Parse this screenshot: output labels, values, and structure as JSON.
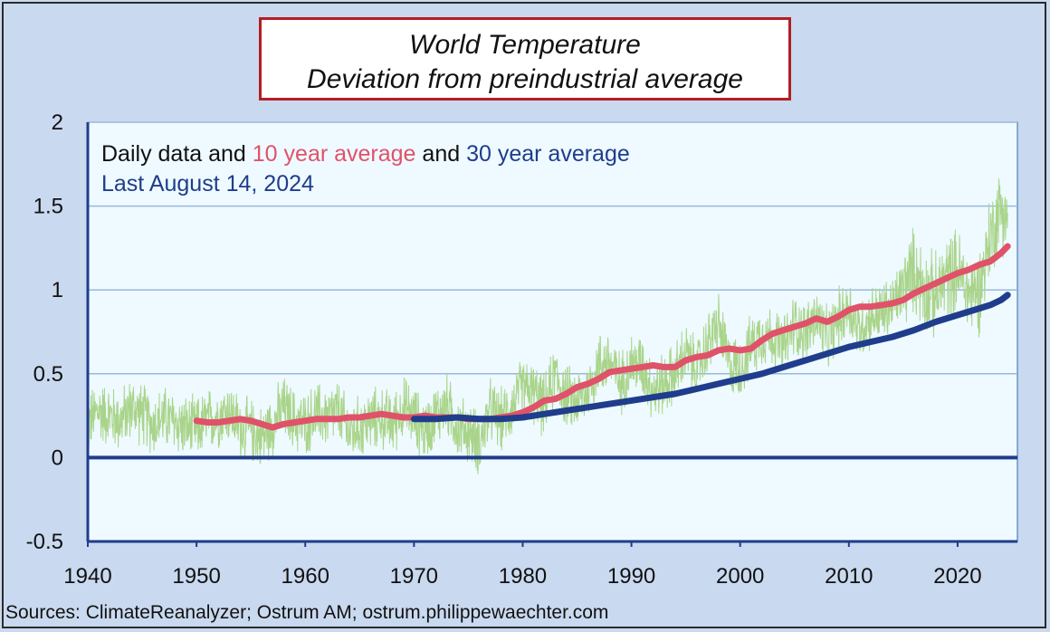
{
  "title_line1": "World Temperature",
  "title_line2": "Deviation from preindustrial average",
  "footer": "Sources: ClimateReanalyzer;  Ostrum AM; ostrum.philippewaechter.com",
  "chart_data": {
    "type": "line",
    "xlim": [
      1940,
      2025.5
    ],
    "ylim": [
      -0.5,
      2
    ],
    "xticks": [
      1940,
      1950,
      1960,
      1970,
      1980,
      1990,
      2000,
      2010,
      2020
    ],
    "yticks": [
      -0.5,
      0,
      0.5,
      1,
      1.5,
      2
    ],
    "ytick_labels": [
      "-0.5",
      "0",
      "0.5",
      "1",
      "1.5",
      "2"
    ],
    "grid": "horizontal",
    "legend": {
      "line1": [
        {
          "text": "Daily data and ",
          "color": "#111111"
        },
        {
          "text": "10 year average",
          "color": "#e0526a"
        },
        {
          "text": " and ",
          "color": "#111111"
        },
        {
          "text": "30 year average",
          "color": "#1f3d8c"
        }
      ],
      "line2": {
        "text": "Last August 14, 2024",
        "color": "#1f3d8c"
      }
    },
    "colors": {
      "daily": "#a9d48a",
      "avg10": "#e0526a",
      "avg30": "#1f3d8c",
      "zero_line": "#1f3d8c",
      "plot_bg": "#eefaff",
      "grid": "#9ab8dc"
    },
    "series": [
      {
        "key": "daily",
        "x": [
          1940,
          1941,
          1942,
          1943,
          1944,
          1945,
          1946,
          1947,
          1948,
          1949,
          1950,
          1951,
          1952,
          1953,
          1954,
          1955,
          1956,
          1957,
          1958,
          1959,
          1960,
          1961,
          1962,
          1963,
          1964,
          1965,
          1966,
          1967,
          1968,
          1969,
          1970,
          1971,
          1972,
          1973,
          1974,
          1975,
          1976,
          1977,
          1978,
          1979,
          1980,
          1981,
          1982,
          1983,
          1984,
          1985,
          1986,
          1987,
          1988,
          1989,
          1990,
          1991,
          1992,
          1993,
          1994,
          1995,
          1996,
          1997,
          1998,
          1999,
          2000,
          2001,
          2002,
          2003,
          2004,
          2005,
          2006,
          2007,
          2008,
          2009,
          2010,
          2011,
          2012,
          2013,
          2014,
          2015,
          2016,
          2017,
          2018,
          2019,
          2020,
          2021,
          2022,
          2023,
          2024,
          2024.6
        ],
        "y": [
          0.2,
          0.28,
          0.25,
          0.22,
          0.3,
          0.26,
          0.2,
          0.24,
          0.21,
          0.18,
          0.17,
          0.22,
          0.25,
          0.28,
          0.18,
          0.16,
          0.12,
          0.2,
          0.3,
          0.22,
          0.2,
          0.26,
          0.24,
          0.28,
          0.15,
          0.18,
          0.22,
          0.24,
          0.2,
          0.3,
          0.24,
          0.16,
          0.25,
          0.32,
          0.18,
          0.16,
          0.08,
          0.28,
          0.22,
          0.3,
          0.42,
          0.38,
          0.3,
          0.5,
          0.36,
          0.34,
          0.4,
          0.56,
          0.58,
          0.44,
          0.56,
          0.55,
          0.4,
          0.44,
          0.5,
          0.62,
          0.52,
          0.68,
          0.8,
          0.55,
          0.54,
          0.66,
          0.74,
          0.72,
          0.66,
          0.8,
          0.74,
          0.84,
          0.7,
          0.82,
          0.9,
          0.76,
          0.84,
          0.86,
          0.9,
          1.02,
          1.12,
          1.0,
          0.96,
          1.08,
          1.12,
          0.98,
          1.0,
          1.32,
          1.5,
          1.42
        ]
      },
      {
        "key": "avg10",
        "name": "10 year average",
        "x": [
          1950,
          1951,
          1952,
          1953,
          1954,
          1955,
          1956,
          1957,
          1958,
          1959,
          1960,
          1961,
          1962,
          1963,
          1964,
          1965,
          1966,
          1967,
          1968,
          1969,
          1970,
          1971,
          1972,
          1973,
          1974,
          1975,
          1976,
          1977,
          1978,
          1979,
          1980,
          1981,
          1982,
          1983,
          1984,
          1985,
          1986,
          1987,
          1988,
          1989,
          1990,
          1991,
          1992,
          1993,
          1994,
          1995,
          1996,
          1997,
          1998,
          1999,
          2000,
          2001,
          2002,
          2003,
          2004,
          2005,
          2006,
          2007,
          2008,
          2009,
          2010,
          2011,
          2012,
          2013,
          2014,
          2015,
          2016,
          2017,
          2018,
          2019,
          2020,
          2021,
          2022,
          2023,
          2024,
          2024.6
        ],
        "y": [
          0.22,
          0.21,
          0.21,
          0.22,
          0.23,
          0.22,
          0.2,
          0.18,
          0.2,
          0.21,
          0.22,
          0.23,
          0.23,
          0.23,
          0.24,
          0.24,
          0.25,
          0.26,
          0.25,
          0.24,
          0.24,
          0.25,
          0.24,
          0.24,
          0.24,
          0.23,
          0.23,
          0.23,
          0.24,
          0.25,
          0.27,
          0.3,
          0.34,
          0.35,
          0.38,
          0.42,
          0.44,
          0.47,
          0.51,
          0.52,
          0.53,
          0.54,
          0.55,
          0.54,
          0.54,
          0.58,
          0.6,
          0.61,
          0.64,
          0.65,
          0.64,
          0.65,
          0.7,
          0.74,
          0.76,
          0.78,
          0.8,
          0.83,
          0.81,
          0.84,
          0.88,
          0.9,
          0.9,
          0.91,
          0.92,
          0.94,
          0.98,
          1.01,
          1.04,
          1.07,
          1.1,
          1.12,
          1.15,
          1.17,
          1.22,
          1.26
        ]
      },
      {
        "key": "avg30",
        "name": "30 year average",
        "x": [
          1970,
          1972,
          1974,
          1976,
          1978,
          1980,
          1982,
          1984,
          1986,
          1988,
          1990,
          1992,
          1994,
          1996,
          1998,
          2000,
          2002,
          2004,
          2006,
          2008,
          2010,
          2012,
          2014,
          2016,
          2018,
          2020,
          2022,
          2023,
          2024,
          2024.6
        ],
        "y": [
          0.23,
          0.23,
          0.24,
          0.23,
          0.23,
          0.24,
          0.26,
          0.28,
          0.3,
          0.32,
          0.34,
          0.36,
          0.38,
          0.41,
          0.44,
          0.47,
          0.5,
          0.54,
          0.58,
          0.62,
          0.66,
          0.69,
          0.72,
          0.76,
          0.81,
          0.85,
          0.89,
          0.91,
          0.94,
          0.97
        ]
      }
    ]
  }
}
